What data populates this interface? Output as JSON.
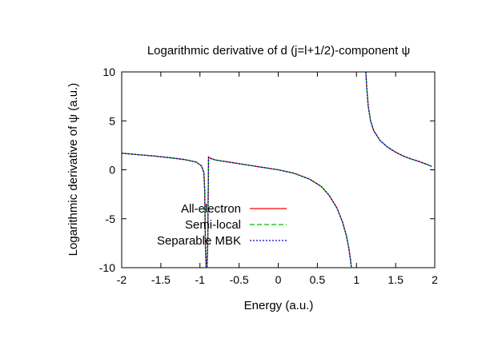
{
  "chart_data": {
    "type": "line",
    "title": "Logarithmic derivative of d (j=l+1/2)-component ψ",
    "xlabel": "Energy (a.u.)",
    "ylabel": "Logarithmic derivative of ψ (a.u.)",
    "xlim": [
      -2,
      2
    ],
    "ylim": [
      -10,
      10
    ],
    "xticks": [
      -2,
      -1.5,
      -1,
      -0.5,
      0,
      0.5,
      1,
      1.5,
      2
    ],
    "yticks": [
      -10,
      -5,
      0,
      5,
      10
    ],
    "grid": false,
    "legend_position": "bottom-left",
    "series": [
      {
        "name": "All-electron",
        "color": "#ff0000",
        "dash": "solid",
        "x": [
          -2.0,
          -1.8,
          -1.6,
          -1.4,
          -1.2,
          -1.05,
          -0.98,
          -0.95,
          -0.94,
          -0.93,
          -0.92,
          -0.91,
          -0.9,
          -0.89,
          -0.88,
          -0.86,
          -0.8,
          -0.6,
          -0.4,
          -0.2,
          0.0,
          0.2,
          0.4,
          0.55,
          0.65,
          0.75,
          0.82,
          0.87,
          0.9,
          0.92,
          0.935
        ],
        "y": [
          1.7,
          1.55,
          1.42,
          1.25,
          1.05,
          0.8,
          0.4,
          -0.3,
          -2.0,
          -8.0,
          -10.0,
          -10.0,
          -7.0,
          1.3,
          1.25,
          1.15,
          1.0,
          0.75,
          0.5,
          0.25,
          0.0,
          -0.35,
          -0.95,
          -1.7,
          -2.6,
          -3.9,
          -5.3,
          -6.7,
          -7.9,
          -9.0,
          -10.0
        ]
      },
      {
        "name": "Semi-local",
        "color": "#00bb00",
        "dash": "6,3",
        "x": [
          1.12,
          1.13,
          1.15,
          1.18,
          1.22,
          1.3,
          1.4,
          1.5,
          1.6,
          1.7,
          1.8,
          1.9,
          1.96
        ],
        "y": [
          10.0,
          8.5,
          6.5,
          5.0,
          4.0,
          3.0,
          2.3,
          1.8,
          1.4,
          1.1,
          0.85,
          0.55,
          0.35
        ]
      },
      {
        "name": "Separable MBK",
        "color": "#0000cc",
        "dash": "2,2",
        "x": [
          1.12,
          1.13,
          1.15,
          1.18,
          1.22,
          1.3,
          1.4,
          1.5,
          1.6,
          1.7,
          1.8,
          1.9,
          1.96
        ],
        "y": [
          10.0,
          8.5,
          6.5,
          5.0,
          4.0,
          3.0,
          2.3,
          1.8,
          1.4,
          1.1,
          0.85,
          0.55,
          0.35
        ]
      }
    ]
  }
}
